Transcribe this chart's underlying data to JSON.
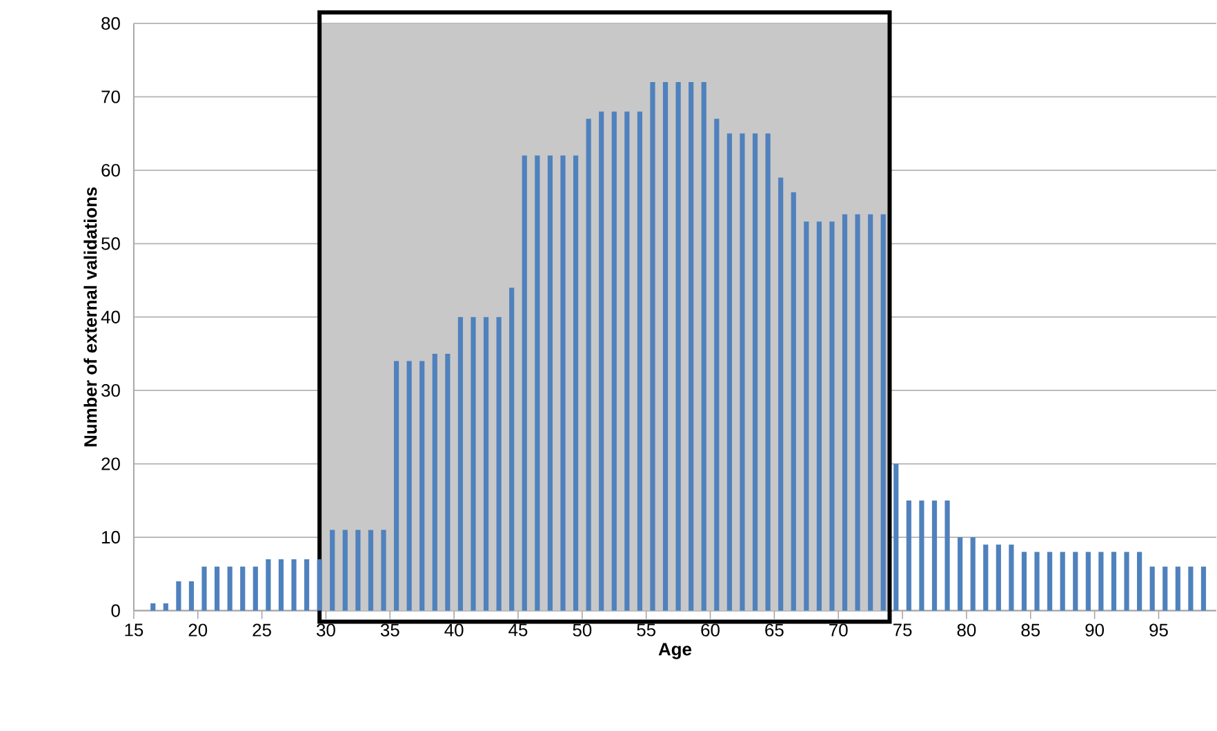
{
  "chart_data": {
    "type": "histogram",
    "xlabel": "Age",
    "ylabel": "Number of external validations",
    "bins": [
      16,
      17,
      18,
      19,
      20,
      21,
      22,
      23,
      24,
      25,
      26,
      27,
      28,
      29,
      30,
      31,
      32,
      33,
      34,
      35,
      36,
      37,
      38,
      39,
      40,
      41,
      42,
      43,
      44,
      45,
      46,
      47,
      48,
      49,
      50,
      51,
      52,
      53,
      54,
      55,
      56,
      57,
      58,
      59,
      60,
      61,
      62,
      63,
      64,
      65,
      66,
      67,
      68,
      69,
      70,
      71,
      72,
      73,
      74,
      75,
      76,
      77,
      78,
      79,
      80,
      81,
      82,
      83,
      84,
      85,
      86,
      87,
      88,
      89,
      90,
      91,
      92,
      93,
      94,
      95,
      96,
      97,
      98,
      99
    ],
    "values": [
      1,
      1,
      4,
      4,
      6,
      6,
      6,
      6,
      6,
      7,
      7,
      7,
      7,
      7,
      11,
      11,
      11,
      11,
      11,
      34,
      34,
      34,
      35,
      35,
      40,
      40,
      40,
      40,
      44,
      62,
      62,
      62,
      62,
      62,
      67,
      68,
      68,
      68,
      68,
      72,
      72,
      72,
      72,
      72,
      67,
      65,
      65,
      65,
      65,
      59,
      57,
      53,
      53,
      53,
      54,
      54,
      54,
      54,
      20,
      15,
      15,
      15,
      15,
      10,
      10,
      9,
      9,
      9,
      8,
      8,
      8,
      8,
      8,
      8,
      8,
      8,
      8,
      8,
      6,
      6,
      6,
      6,
      6
    ],
    "color": "#4f81bd",
    "xlim": [
      15,
      99.5
    ],
    "xticks": [
      15,
      20,
      25,
      30,
      35,
      40,
      45,
      50,
      55,
      60,
      65,
      70,
      75,
      80,
      85,
      90,
      95
    ],
    "ylim": [
      0,
      80
    ],
    "yticks": [
      0,
      10,
      20,
      30,
      40,
      50,
      60,
      70,
      80
    ],
    "grid": "y",
    "bands": [
      {
        "axis": "x",
        "from": 29.5,
        "to": 74,
        "color": "#c8c8c8"
      }
    ]
  }
}
